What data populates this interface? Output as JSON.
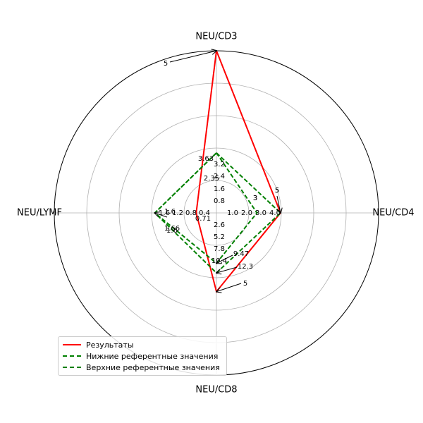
{
  "chart_data": {
    "type": "radar",
    "axes": [
      "NEU/CD3",
      "NEU/CD4",
      "NEU/CD8",
      "NEU/LYMF"
    ],
    "series": [
      {
        "name": "Результаты",
        "values": [
          1.0,
          0.395,
          0.485,
          0.125
        ],
        "color": "#ff0000",
        "style": "solid"
      },
      {
        "name": "Нижние референтные значения",
        "values": [
          0.37,
          0.25,
          0.31,
          0.38
        ],
        "color": "#008000",
        "style": "dashed"
      },
      {
        "name": "Верхние референтные значения",
        "values": [
          0.37,
          0.395,
          0.37,
          0.38
        ],
        "color": "#008000",
        "style": "dashed"
      }
    ],
    "rlim": [
      0,
      1
    ],
    "rgrid": [
      0.2,
      0.4,
      0.6,
      0.8,
      1.0
    ],
    "axis_ticks": [
      {
        "axis": "NEU/CD3",
        "labels": [
          "0.8",
          "1.6",
          "2.4",
          "3.2"
        ]
      },
      {
        "axis": "NEU/CD4",
        "labels": [
          "1.0",
          "2.0",
          "3.0",
          "4.0"
        ]
      },
      {
        "axis": "NEU/CD8",
        "labels": [
          "2.6",
          "5.2",
          "7.8",
          "10.4"
        ]
      },
      {
        "axis": "NEU/LYMF",
        "labels": [
          "0.4",
          "0.8",
          "1.2",
          "1.6"
        ]
      }
    ],
    "annotations": [
      {
        "axis": "NEU/CD3",
        "text": "5",
        "r": 1.0,
        "arrow": true
      },
      {
        "axis": "NEU/CD3",
        "text": "3.63",
        "r": 0.39,
        "arrow": false
      },
      {
        "axis": "NEU/CD3",
        "text": "2.35",
        "r": 0.24,
        "arrow": false
      },
      {
        "axis": "NEU/CD4",
        "text": "5",
        "r": 0.395,
        "arrow": true
      },
      {
        "axis": "NEU/CD4",
        "text": "5",
        "r": 0.395,
        "arrow": false
      },
      {
        "axis": "NEU/CD4",
        "text": "3",
        "r": 0.25,
        "arrow": false
      },
      {
        "axis": "NEU/CD4",
        "text": "3",
        "r": 0.25,
        "arrow": false
      },
      {
        "axis": "NEU/CD8",
        "text": "5",
        "r": 0.485,
        "arrow": true
      },
      {
        "axis": "NEU/CD8",
        "text": "12.3",
        "r": 0.37,
        "arrow": true
      },
      {
        "axis": "NEU/CD8",
        "text": "9.47",
        "r": 0.31,
        "arrow": true
      },
      {
        "axis": "NEU/LYMF",
        "text": "1.6",
        "r": 0.38,
        "arrow": true
      },
      {
        "axis": "NEU/LYMF",
        "text": "0.71",
        "r": 0.125,
        "arrow": false
      },
      {
        "axis": "NEU/LYMF",
        "text": "1.66",
        "r": 0.38,
        "arrow": false
      },
      {
        "axis": "NEU/LYMF",
        "text": "1.6",
        "r": 0.38,
        "arrow": false
      }
    ],
    "legend": "lower-left",
    "grid": true
  }
}
